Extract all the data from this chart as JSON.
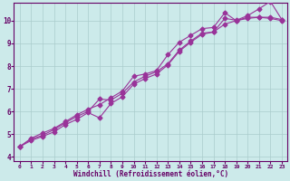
{
  "xlabel": "Windchill (Refroidissement éolien,°C)",
  "bg_color": "#cceaea",
  "line_color": "#993399",
  "grid_color": "#aacccc",
  "axis_color": "#660066",
  "tick_color": "#660066",
  "xlim": [
    -0.5,
    23.5
  ],
  "ylim": [
    3.8,
    10.8
  ],
  "yticks": [
    4,
    5,
    6,
    7,
    8,
    9,
    10
  ],
  "xticks": [
    0,
    1,
    2,
    3,
    4,
    5,
    6,
    7,
    8,
    9,
    10,
    11,
    12,
    13,
    14,
    15,
    16,
    17,
    18,
    19,
    20,
    21,
    22,
    23
  ],
  "line1_x": [
    0,
    1,
    2,
    3,
    4,
    5,
    6,
    7,
    8,
    9,
    10,
    11,
    12,
    13,
    14,
    15,
    16,
    17,
    18,
    19,
    20,
    21,
    22,
    23
  ],
  "line1_y": [
    4.45,
    4.78,
    4.95,
    5.2,
    5.5,
    5.78,
    6.0,
    6.55,
    6.5,
    6.8,
    7.3,
    7.55,
    7.75,
    8.1,
    8.7,
    9.1,
    9.45,
    9.5,
    9.85,
    10.0,
    10.1,
    10.15,
    10.1,
    10.0
  ],
  "line2_x": [
    0,
    1,
    2,
    3,
    4,
    5,
    6,
    7,
    8,
    9,
    10,
    11,
    12,
    13,
    14,
    15,
    16,
    17,
    18,
    19,
    20,
    21,
    22,
    23
  ],
  "line2_y": [
    4.45,
    4.82,
    5.05,
    5.25,
    5.55,
    5.85,
    6.1,
    6.3,
    6.6,
    6.9,
    7.55,
    7.65,
    7.8,
    8.5,
    9.05,
    9.35,
    9.65,
    9.7,
    10.35,
    10.0,
    10.15,
    10.15,
    10.15,
    10.05
  ],
  "line3_x": [
    0,
    1,
    2,
    3,
    4,
    5,
    6,
    7,
    8,
    9,
    10,
    11,
    12,
    13,
    14,
    15,
    16,
    17,
    18,
    19,
    20,
    21,
    22,
    23
  ],
  "line3_y": [
    4.45,
    4.72,
    4.9,
    5.1,
    5.42,
    5.65,
    5.95,
    5.72,
    6.35,
    6.65,
    7.2,
    7.45,
    7.65,
    8.05,
    8.65,
    9.05,
    9.4,
    9.5,
    10.1,
    10.02,
    10.22,
    10.52,
    10.85,
    10.05
  ],
  "marker": "D",
  "markersize": 2.5,
  "linewidth": 0.8
}
